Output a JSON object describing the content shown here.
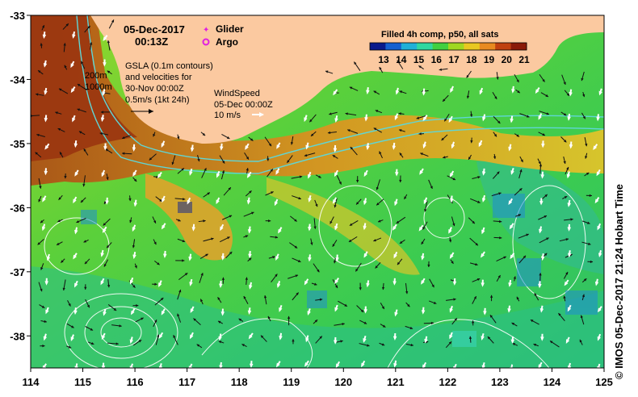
{
  "header": {
    "date": "05-Dec-2017",
    "time": "00:13Z"
  },
  "legend": {
    "glider": "Glider",
    "argo": "Argo",
    "glider_color": "#e020e0",
    "argo_color": "#e020e0"
  },
  "colorbar": {
    "title": "Filled 4h comp, p50, all sats",
    "ticks": [
      "13",
      "14",
      "15",
      "16",
      "17",
      "18",
      "19",
      "20",
      "21"
    ],
    "colors": [
      "#0a1a8c",
      "#1560d0",
      "#20b0d8",
      "#30d8a0",
      "#40d040",
      "#a0d820",
      "#e8c820",
      "#e88a20",
      "#c04010",
      "#8a1a08"
    ]
  },
  "gsla": {
    "lines": [
      "GSLA (0.1m contours)",
      "and velocities for",
      "30-Nov 00:00Z",
      "0.5m/s (1kt 24h)"
    ]
  },
  "isobaths": {
    "shallow": "200m",
    "deep": "1000m",
    "color": "#5fd6d6"
  },
  "wind": {
    "lines": [
      "WindSpeed",
      "05-Dec 00:00Z",
      "10 m/s"
    ]
  },
  "axes": {
    "x_ticks": [
      "114",
      "115",
      "116",
      "117",
      "118",
      "119",
      "120",
      "121",
      "122",
      "123",
      "124",
      "125"
    ],
    "y_ticks": [
      "-33",
      "-34",
      "-35",
      "-36",
      "-37",
      "-38"
    ],
    "xlim": [
      114,
      125
    ],
    "ylim": [
      -38.5,
      -33
    ]
  },
  "credit": "© IMOS 05-Dec-2017 21:24 Hobart Time",
  "land_color": "#fbc9a0"
}
